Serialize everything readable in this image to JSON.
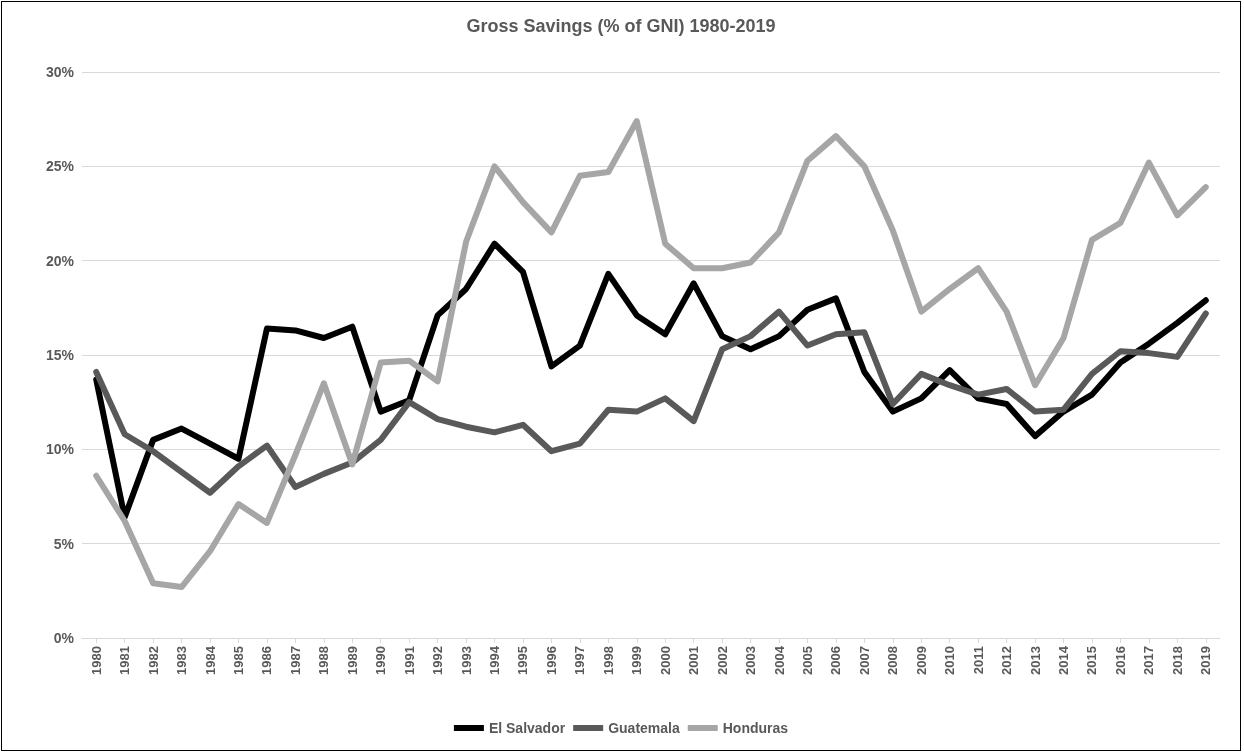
{
  "chart_data": {
    "type": "line",
    "title": "Gross Savings (% of GNI) 1980-2019",
    "categories": [
      "1980",
      "1981",
      "1982",
      "1983",
      "1984",
      "1985",
      "1986",
      "1987",
      "1988",
      "1989",
      "1990",
      "1991",
      "1992",
      "1993",
      "1994",
      "1995",
      "1996",
      "1997",
      "1998",
      "1999",
      "2000",
      "2001",
      "2002",
      "2003",
      "2004",
      "2005",
      "2006",
      "2007",
      "2008",
      "2009",
      "2010",
      "2011",
      "2012",
      "2013",
      "2014",
      "2015",
      "2016",
      "2017",
      "2018",
      "2019"
    ],
    "series": [
      {
        "name": "El Salvador",
        "color": "#000000",
        "values": [
          13.7,
          6.4,
          10.5,
          11.1,
          10.3,
          9.5,
          16.4,
          16.3,
          15.9,
          16.5,
          12.0,
          12.6,
          17.1,
          18.5,
          20.9,
          19.4,
          14.4,
          15.5,
          19.3,
          17.1,
          16.1,
          18.8,
          16.0,
          15.3,
          16.0,
          17.4,
          18.0,
          14.1,
          12.0,
          12.7,
          14.2,
          12.7,
          12.4,
          10.7,
          12.0,
          12.9,
          14.6,
          15.6,
          16.7,
          17.9
        ]
      },
      {
        "name": "Guatemala",
        "color": "#595959",
        "values": [
          14.1,
          10.8,
          9.9,
          8.8,
          7.7,
          9.1,
          10.2,
          8.0,
          8.7,
          9.3,
          10.5,
          12.5,
          11.6,
          11.2,
          10.9,
          11.3,
          9.9,
          10.3,
          12.1,
          12.0,
          12.7,
          11.5,
          15.3,
          16.0,
          17.3,
          15.5,
          16.1,
          16.2,
          12.4,
          14.0,
          13.4,
          12.9,
          13.2,
          12.0,
          12.1,
          14.0,
          15.2,
          15.1,
          14.9,
          17.2
        ]
      },
      {
        "name": "Honduras",
        "color": "#a6a6a6",
        "values": [
          8.6,
          6.2,
          2.9,
          2.7,
          4.6,
          7.1,
          6.1,
          9.7,
          13.5,
          9.2,
          14.6,
          14.7,
          13.6,
          21.0,
          25.0,
          23.1,
          21.5,
          24.5,
          24.7,
          27.4,
          20.9,
          19.6,
          19.6,
          19.9,
          21.5,
          25.3,
          26.6,
          25.0,
          21.6,
          17.3,
          18.5,
          19.6,
          17.3,
          13.4,
          15.9,
          21.1,
          22.0,
          25.2,
          22.4,
          23.9
        ]
      }
    ],
    "ylim": [
      0,
      30
    ],
    "yticks": [
      {
        "value": 0,
        "label": "0%"
      },
      {
        "value": 5,
        "label": "5%"
      },
      {
        "value": 10,
        "label": "10%"
      },
      {
        "value": 15,
        "label": "15%"
      },
      {
        "value": 20,
        "label": "20%"
      },
      {
        "value": 25,
        "label": "25%"
      },
      {
        "value": 30,
        "label": "30%"
      }
    ],
    "grid": "y",
    "legend": "bottom",
    "marker": "none",
    "line_style": "solid"
  }
}
